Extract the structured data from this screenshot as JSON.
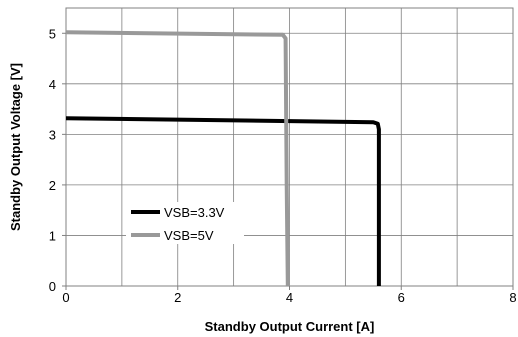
{
  "chart_data": {
    "type": "line",
    "title": "",
    "xlabel": "Standby Output Current [A]",
    "ylabel": "Standby Output Voltage [V]",
    "xlim": [
      0,
      8
    ],
    "ylim": [
      0,
      5.5
    ],
    "x_ticks": [
      "0",
      "2",
      "4",
      "6",
      "8"
    ],
    "y_ticks": [
      "0",
      "1",
      "2",
      "3",
      "4",
      "5"
    ],
    "x_tick_values": [
      0,
      2,
      4,
      6,
      8
    ],
    "y_tick_values": [
      0,
      1,
      2,
      3,
      4,
      5
    ],
    "grid": true,
    "legend_placement": "lower-left",
    "series": [
      {
        "name": "VSB=3.3V",
        "color": "#000000",
        "points": [
          [
            0,
            3.32
          ],
          [
            5.5,
            3.24
          ],
          [
            5.58,
            3.21
          ],
          [
            5.6,
            3.1
          ],
          [
            5.6,
            0
          ]
        ]
      },
      {
        "name": "VSB=5V",
        "color": "#999999",
        "points": [
          [
            0,
            5.02
          ],
          [
            3.88,
            4.97
          ],
          [
            3.93,
            4.9
          ],
          [
            3.95,
            2.0
          ],
          [
            3.97,
            0
          ]
        ]
      }
    ]
  }
}
